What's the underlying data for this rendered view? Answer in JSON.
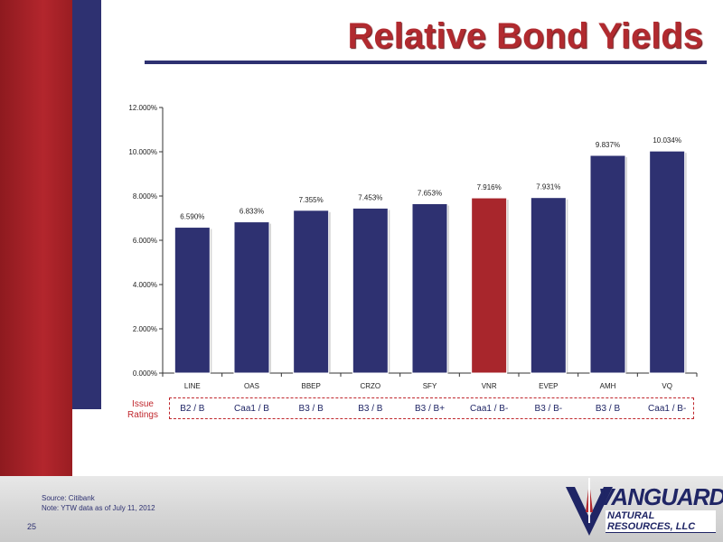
{
  "slide": {
    "title": "Relative Bond Yields",
    "page_number": "25",
    "source_lines": [
      "Source: Citibank",
      "Note: YTW data as of July 11, 2012"
    ],
    "logo_main": "VANGUARD",
    "logo_sub": "NATURAL RESOURCES, LLC",
    "ratings_label": "Issue Ratings"
  },
  "colors": {
    "default_bar": "#2e3171",
    "highlight_bar": "#a8262c",
    "title": "#b12a2f",
    "rating_box": "#c0272d"
  },
  "chart_data": {
    "type": "bar",
    "title": "",
    "xlabel": "",
    "ylabel": "",
    "ylim": [
      0,
      12
    ],
    "yticks": [
      "0.000%",
      "2.000%",
      "4.000%",
      "6.000%",
      "8.000%",
      "10.000%",
      "12.000%"
    ],
    "categories": [
      "LINE",
      "OAS",
      "BBEP",
      "CRZO",
      "SFY",
      "VNR",
      "EVEP",
      "AMH",
      "VQ"
    ],
    "values": [
      6.59,
      6.833,
      7.355,
      7.453,
      7.653,
      7.916,
      7.931,
      9.837,
      10.034
    ],
    "data_labels": [
      "6.590%",
      "6.833%",
      "7.355%",
      "7.453%",
      "7.653%",
      "7.916%",
      "7.931%",
      "9.837%",
      "10.034%"
    ],
    "highlight_category": "VNR",
    "ratings": [
      "B2 / B",
      "Caa1 / B",
      "B3 / B",
      "B3 / B",
      "B3 / B+",
      "Caa1 / B-",
      "B3 / B-",
      "B3 / B",
      "Caa1 / B-"
    ],
    "grid": false,
    "legend": "none"
  }
}
